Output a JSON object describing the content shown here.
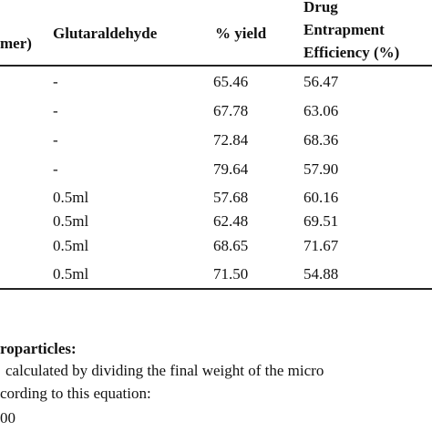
{
  "table": {
    "header": [
      "mer)",
      "Glutaraldehyde",
      "% yield",
      [
        "Drug",
        "Entrapment",
        "Efficiency (%)"
      ]
    ],
    "rows": [
      [
        "-",
        "65.46",
        "56.47"
      ],
      [
        "-",
        "67.78",
        "63.06"
      ],
      [
        "-",
        "72.84",
        "68.36"
      ],
      [
        "-",
        "79.64",
        "57.90"
      ],
      [
        "0.5ml",
        "57.68",
        "60.16"
      ],
      [
        "0.5ml",
        "62.48",
        "69.51"
      ],
      [
        "0.5ml",
        "68.65",
        "71.67"
      ],
      [
        "0.5ml",
        "71.50",
        "54.88"
      ]
    ]
  },
  "notes": {
    "heading": "roparticles:",
    "lines": [
      "calculated by dividing the final weight of the micro",
      "cording to this equation:",
      "00"
    ]
  }
}
